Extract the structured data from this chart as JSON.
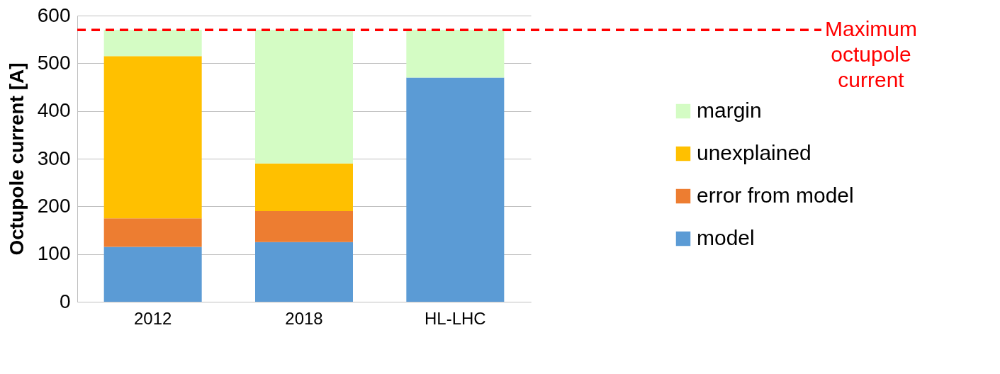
{
  "chart_data": {
    "type": "bar",
    "stacked": true,
    "ylabel": "Octupole current [A]",
    "categories": [
      "2012",
      "2018",
      "HL-LHC"
    ],
    "series": [
      {
        "name": "model",
        "color": "#5b9bd5",
        "values": [
          115,
          125,
          470
        ]
      },
      {
        "name": "error from model",
        "color": "#ed7d31",
        "values": [
          60,
          65,
          null
        ]
      },
      {
        "name": "unexplained",
        "color": "#ffc000",
        "values": [
          340,
          100,
          null
        ]
      },
      {
        "name": "margin",
        "color": "#d4fcc4",
        "values": [
          55,
          280,
          100
        ]
      }
    ],
    "ylim": [
      0,
      600
    ],
    "yticks": [
      0,
      100,
      200,
      300,
      400,
      500,
      600
    ],
    "grid": "y",
    "legend": "right",
    "ref_lines": [
      {
        "axis": "y",
        "value": 570,
        "label": "Maximum octupole current",
        "color": "#ff0000",
        "line_style": "dashed"
      }
    ]
  }
}
